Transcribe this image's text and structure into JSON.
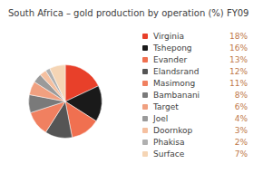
{
  "chart_data": {
    "type": "pie",
    "title": "South Africa – gold production by operation (%) FY09",
    "categories": [
      "Virginia",
      "Tshepong",
      "Evander",
      "Elandsrand",
      "Masimong",
      "Bambanani",
      "Target",
      "Joel",
      "Doornkop",
      "Phakisa",
      "Surface"
    ],
    "values": [
      18,
      16,
      13,
      12,
      11,
      8,
      6,
      4,
      3,
      2,
      7
    ],
    "value_labels": [
      "18%",
      "16%",
      "13%",
      "12%",
      "11%",
      "8%",
      "6%",
      "4%",
      "3%",
      "2%",
      "7%"
    ],
    "colors": [
      "#e8402a",
      "#1a1a1a",
      "#f07050",
      "#555555",
      "#f08060",
      "#7a7a7a",
      "#f0a080",
      "#9a9a9a",
      "#f5c0a0",
      "#b0b0b0",
      "#f5d5b5"
    ],
    "legend": "right"
  }
}
